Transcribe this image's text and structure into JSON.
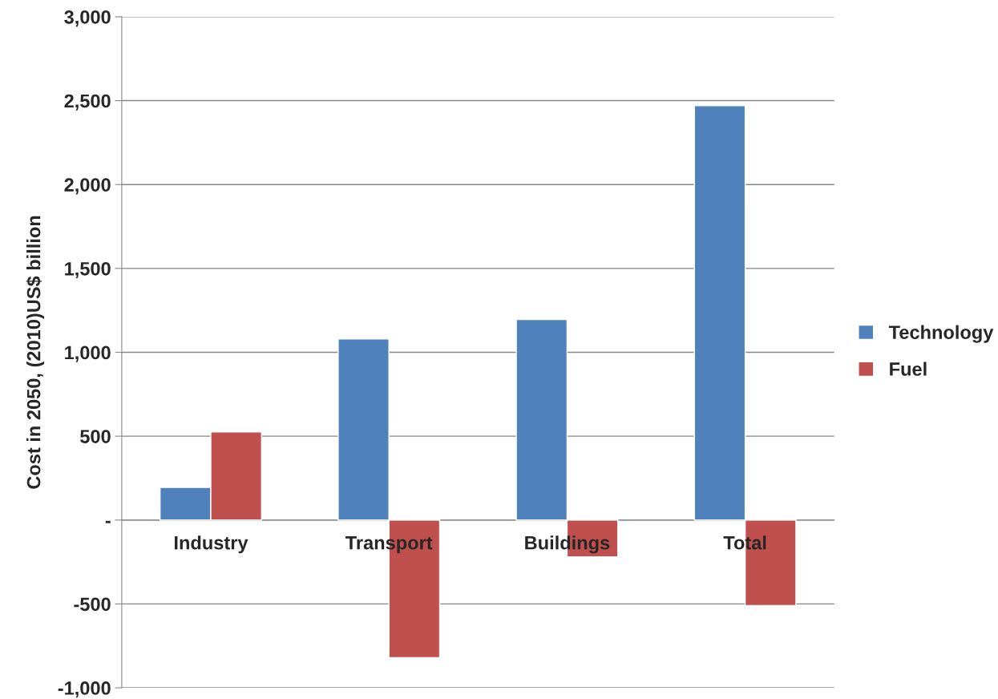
{
  "chart_data": {
    "type": "bar",
    "ylabel": "Cost in 2050, (2010)US$ billion",
    "categories": [
      "Industry",
      "Transport",
      "Buildings",
      "Total"
    ],
    "series": [
      {
        "name": "Technology",
        "color": "#4f81bd",
        "values": [
          195,
          1080,
          1195,
          2470
        ]
      },
      {
        "name": "Fuel",
        "color": "#c0504d",
        "values": [
          525,
          -820,
          -220,
          -510
        ]
      }
    ],
    "ylim": [
      -1000,
      3000
    ],
    "yticks": [
      {
        "value": -1000,
        "label": "-1,000"
      },
      {
        "value": -500,
        "label": "-500"
      },
      {
        "value": 0,
        "label": "-"
      },
      {
        "value": 500,
        "label": "500"
      },
      {
        "value": 1000,
        "label": "1,000"
      },
      {
        "value": 1500,
        "label": "1,500"
      },
      {
        "value": 2000,
        "label": "2,000"
      },
      {
        "value": 2500,
        "label": "2,500"
      },
      {
        "value": 3000,
        "label": "3,000"
      }
    ],
    "grid": "y",
    "legend": "right"
  }
}
